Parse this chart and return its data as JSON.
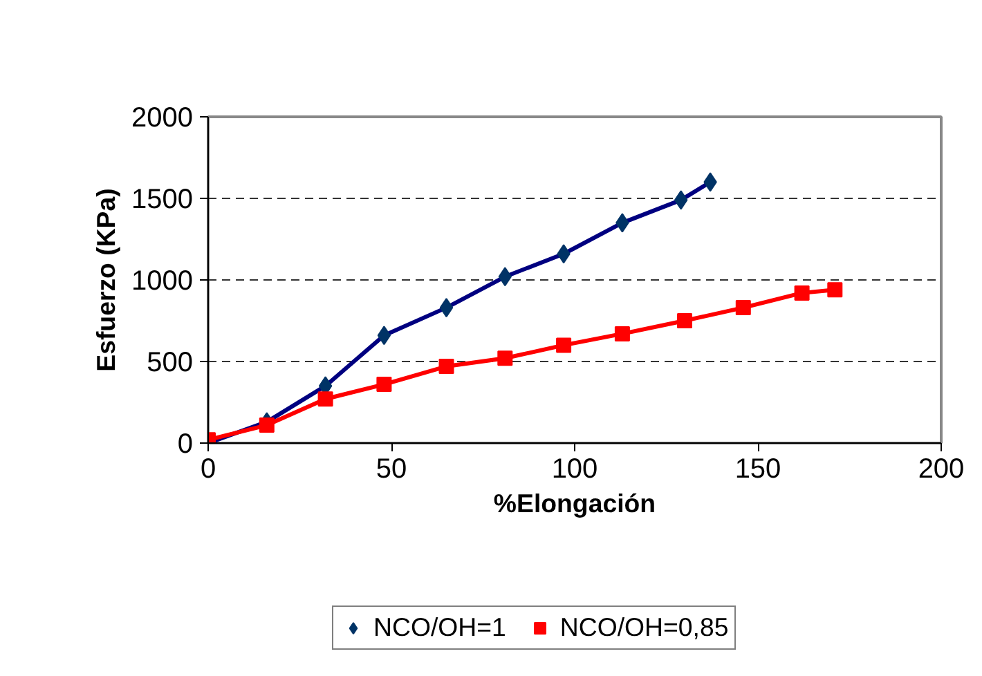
{
  "chart_data": {
    "type": "line",
    "xlabel": "%Elongación",
    "ylabel": "Esfuerzo (KPa)",
    "xlim": [
      0,
      200
    ],
    "xticks": [
      0,
      50,
      100,
      150,
      200
    ],
    "ylim": [
      0,
      2000
    ],
    "yticks": [
      0,
      500,
      1000,
      1500,
      2000
    ],
    "grid": "y",
    "legend": "bottom",
    "series": [
      {
        "name": "NCO/OH=1",
        "color": "#000080",
        "marker": "diamond",
        "x": [
          0,
          16,
          32,
          48,
          65,
          81,
          97,
          113,
          129,
          137
        ],
        "values": [
          0,
          130,
          350,
          660,
          830,
          1020,
          1160,
          1350,
          1490,
          1600
        ]
      },
      {
        "name": "NCO/OH=0,85",
        "color": "#ff0000",
        "marker": "square",
        "x": [
          0,
          16,
          32,
          48,
          65,
          81,
          97,
          113,
          130,
          146,
          162,
          171
        ],
        "values": [
          20,
          110,
          270,
          360,
          470,
          520,
          600,
          670,
          750,
          830,
          920,
          940
        ]
      }
    ]
  }
}
